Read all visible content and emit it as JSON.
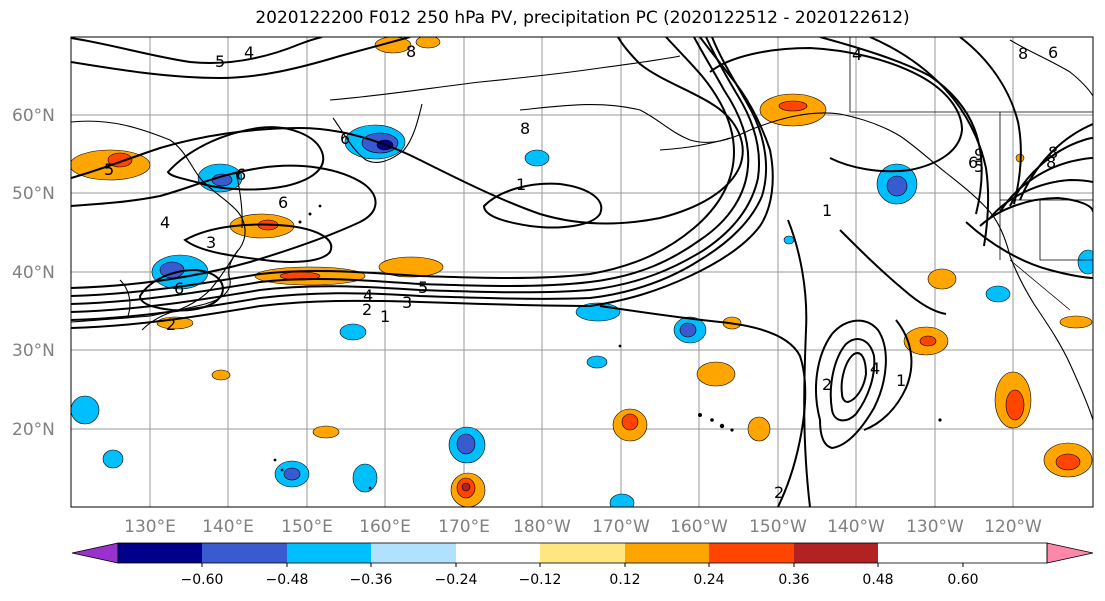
{
  "title": "2020122200 F012 250 hPa PV, precipitation PC (2020122512 - 2020122612)",
  "lat_labels": [
    "60°N",
    "50°N",
    "40°N",
    "30°N",
    "20°N"
  ],
  "lon_labels": [
    "130°E",
    "140°E",
    "150°E",
    "160°E",
    "170°E",
    "180°W",
    "170°W",
    "160°W",
    "150°W",
    "140°W",
    "130°W",
    "120°W"
  ],
  "colorbar": {
    "ticks": [
      "−0.60",
      "−0.48",
      "−0.36",
      "−0.24",
      "−0.12",
      "0.12",
      "0.24",
      "0.36",
      "0.48",
      "0.60"
    ],
    "colors": [
      "#9932CC",
      "#00008B",
      "#3A5BD0",
      "#00BFFF",
      "#B0E2FF",
      "#FFFFFF",
      "#FFE680",
      "#FFA500",
      "#FF4500",
      "#B22222",
      "#FF88AA"
    ]
  },
  "contour_labels": [
    "4",
    "5",
    "8",
    "6",
    "8",
    "5",
    "6",
    "4",
    "3",
    "6",
    "5",
    "4",
    "3",
    "2",
    "1",
    "2",
    "8",
    "1",
    "4",
    "6",
    "8",
    "6",
    "1",
    "2",
    "1",
    "4",
    "6",
    "9",
    "8",
    "5"
  ]
}
